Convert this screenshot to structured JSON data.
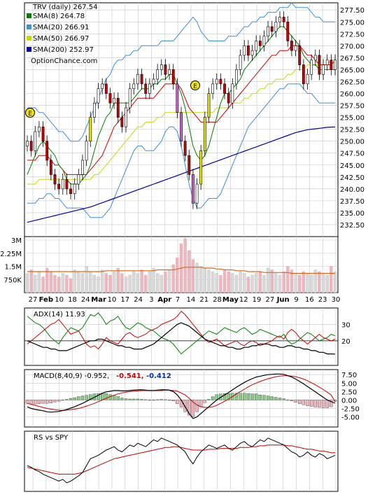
{
  "chart_data": [
    {
      "type": "candlestick",
      "title": "TRV (daily) 267.54",
      "legend": [
        {
          "label": "SMA(8) 264.78",
          "color": "#008000"
        },
        {
          "label": "SMA(20) 266.91",
          "color": "#3d8fd6"
        },
        {
          "label": "SMA(50) 266.97",
          "color": "#c8d800"
        },
        {
          "label": "SMA(200) 252.97",
          "color": "#0000aa"
        }
      ],
      "watermark": "OptionChance.com",
      "ylim": [
        230,
        279
      ],
      "yticks": [
        "277.50",
        "275.00",
        "272.50",
        "270.00",
        "267.50",
        "265.00",
        "262.50",
        "260.00",
        "257.50",
        "255.00",
        "252.50",
        "250.00",
        "247.50",
        "245.00",
        "242.50",
        "240.00",
        "237.50",
        "235.00",
        "232.50"
      ],
      "xticks": [
        "27",
        "Feb",
        "10",
        "18",
        "24",
        "Mar",
        "10",
        "17",
        "24",
        "3",
        "Apr",
        "7",
        "14",
        "21",
        "28",
        "May",
        "12",
        "19",
        "27",
        "Jun",
        "9",
        "16",
        "23",
        "30"
      ],
      "earnings_markers": [
        "E",
        "E"
      ],
      "close": [
        250,
        248,
        252,
        253,
        250,
        246,
        243,
        241,
        240,
        242,
        240,
        239,
        241,
        243,
        246,
        250,
        255,
        258,
        261,
        262,
        260,
        258,
        259,
        255,
        253,
        257,
        261,
        262,
        264,
        262,
        260,
        262,
        263,
        265,
        266,
        264,
        265,
        262,
        256,
        250,
        247,
        243,
        237,
        241,
        248,
        255,
        260,
        262,
        263,
        262,
        260,
        258,
        262,
        265,
        268,
        270,
        268,
        269,
        271,
        270,
        272,
        274,
        273,
        275,
        276,
        275,
        271,
        269,
        270,
        266,
        262,
        264,
        267,
        268,
        264,
        266,
        267,
        265,
        267
      ],
      "sma8": [
        243,
        245,
        247,
        249,
        250,
        249,
        248,
        247,
        245,
        244,
        242,
        241,
        241,
        241,
        242,
        243,
        245,
        248,
        251,
        253,
        255,
        256,
        258,
        258,
        258,
        258,
        258,
        259,
        260,
        261,
        261,
        261,
        262,
        262,
        263,
        263,
        264,
        264,
        262,
        260,
        257,
        253,
        249,
        247,
        246,
        247,
        249,
        252,
        255,
        258,
        260,
        260,
        261,
        262,
        263,
        265,
        266,
        267,
        268,
        269,
        270,
        271,
        272,
        273,
        274,
        274,
        273,
        272,
        271,
        270,
        268,
        267,
        266,
        266,
        265,
        265,
        265,
        265,
        265
      ],
      "sma20": [
        246,
        246,
        246,
        247,
        247,
        247,
        246,
        245,
        245,
        244,
        243,
        243,
        243,
        243,
        243,
        243,
        244,
        245,
        246,
        247,
        249,
        251,
        253,
        254,
        255,
        256,
        257,
        258,
        259,
        259,
        259,
        259,
        259,
        260,
        261,
        262,
        262,
        262,
        262,
        261,
        259,
        257,
        256,
        255,
        254,
        254,
        254,
        254,
        254,
        255,
        256,
        257,
        258,
        259,
        260,
        261,
        262,
        263,
        264,
        265,
        266,
        267,
        268,
        268,
        269,
        269,
        269,
        270,
        270,
        270,
        269,
        268,
        268,
        267,
        266,
        266,
        266,
        266,
        266.91
      ],
      "sma50": [
        241,
        241,
        241,
        242,
        242,
        242,
        242,
        242,
        242,
        242,
        242,
        242,
        242,
        242,
        242,
        242,
        242,
        243,
        243,
        244,
        245,
        246,
        247,
        248,
        249,
        250,
        251,
        252,
        253,
        253,
        254,
        254,
        254,
        255,
        255,
        256,
        256,
        256,
        256,
        256,
        256,
        256,
        256,
        256,
        256,
        256,
        256,
        256,
        257,
        257,
        257,
        257,
        258,
        258,
        258,
        259,
        259,
        260,
        260,
        261,
        261,
        262,
        262,
        263,
        263,
        263,
        264,
        264,
        265,
        265,
        265,
        266,
        266,
        266,
        266,
        266,
        266,
        267,
        266.97
      ],
      "sma200": [
        233,
        233.2,
        233.4,
        233.6,
        233.8,
        234,
        234.2,
        234.4,
        234.6,
        234.8,
        235,
        235.2,
        235.4,
        235.6,
        235.8,
        236,
        236.2,
        236.5,
        236.8,
        237.1,
        237.4,
        237.7,
        238,
        238.3,
        238.6,
        238.9,
        239.2,
        239.5,
        239.8,
        240.1,
        240.4,
        240.7,
        241,
        241.3,
        241.6,
        241.9,
        242.2,
        242.5,
        242.8,
        243.1,
        243.4,
        243.7,
        244,
        244.3,
        244.6,
        244.9,
        245.2,
        245.5,
        245.8,
        246.1,
        246.4,
        246.7,
        247,
        247.3,
        247.6,
        247.9,
        248.2,
        248.5,
        248.8,
        249.1,
        249.4,
        249.7,
        250,
        250.3,
        250.6,
        250.9,
        251.2,
        251.5,
        251.8,
        252,
        252.2,
        252.4,
        252.5,
        252.6,
        252.7,
        252.8,
        252.9,
        252.95,
        252.97
      ],
      "bb_upper": [
        257,
        257,
        257,
        256,
        256,
        255,
        254,
        253,
        252,
        252,
        251,
        250,
        250,
        250,
        251,
        253,
        255,
        257,
        259,
        261,
        263,
        264,
        266,
        267,
        267,
        268,
        268,
        269,
        269,
        270,
        270,
        270,
        270,
        270,
        271,
        271,
        271,
        271,
        272,
        273,
        274,
        275,
        276,
        275,
        273,
        272,
        271,
        271,
        271,
        271,
        271,
        272,
        272,
        272,
        273,
        274,
        274,
        275,
        275,
        276,
        276,
        277,
        277,
        277,
        278,
        278,
        278,
        279,
        278,
        278,
        278,
        278,
        277,
        276,
        276,
        275,
        275,
        275,
        275
      ],
      "bb_lower": [
        237,
        237,
        237,
        238,
        238,
        239,
        239,
        238,
        238,
        237,
        236,
        236,
        236,
        236,
        236,
        235,
        234,
        234,
        234,
        234,
        235,
        236,
        238,
        240,
        242,
        244,
        246,
        248,
        249,
        249,
        248,
        248,
        248,
        249,
        250,
        252,
        253,
        253,
        252,
        249,
        245,
        241,
        238,
        236,
        236,
        237,
        238,
        238,
        238,
        239,
        241,
        243,
        245,
        247,
        249,
        251,
        253,
        254,
        255,
        256,
        257,
        258,
        259,
        260,
        261,
        261,
        262,
        262,
        262,
        262,
        261,
        260,
        260,
        259,
        258,
        258,
        258,
        258,
        258
      ]
    },
    {
      "type": "bar",
      "title": "",
      "yticks": [
        "3M",
        "2.25M",
        "1.5M",
        "750K"
      ],
      "ylim": [
        0,
        3200000
      ],
      "volume": [
        1.1,
        1.3,
        1.0,
        1.2,
        0.9,
        1.4,
        1.2,
        1.0,
        0.9,
        1.1,
        1.0,
        0.8,
        1.3,
        1.2,
        1.1,
        1.5,
        1.2,
        1.0,
        0.9,
        1.3,
        1.1,
        1.0,
        1.2,
        1.4,
        1.1,
        0.9,
        1.0,
        1.2,
        1.1,
        1.3,
        1.0,
        1.2,
        1.4,
        1.1,
        1.0,
        1.2,
        1.3,
        1.6,
        2.0,
        2.8,
        3.1,
        2.4,
        1.9,
        1.7,
        1.5,
        1.4,
        1.3,
        1.2,
        1.1,
        1.0,
        1.3,
        1.2,
        1.1,
        1.0,
        1.2,
        1.1,
        0.9,
        1.0,
        1.1,
        1.2,
        1.0,
        1.4,
        1.3,
        1.1,
        1.0,
        1.2,
        1.5,
        1.3,
        1.1,
        1.0,
        1.2,
        1.1,
        1.0,
        1.3,
        1.2,
        1.1,
        1.0,
        1.5,
        1.2
      ],
      "volume_avg": [
        1.2,
        1.2,
        1.2,
        1.2,
        1.2,
        1.2,
        1.2,
        1.2,
        1.2,
        1.2,
        1.2,
        1.2,
        1.2,
        1.2,
        1.2,
        1.2,
        1.2,
        1.2,
        1.2,
        1.2,
        1.25,
        1.25,
        1.25,
        1.25,
        1.25,
        1.25,
        1.25,
        1.25,
        1.25,
        1.25,
        1.25,
        1.25,
        1.25,
        1.3,
        1.3,
        1.3,
        1.3,
        1.3,
        1.35,
        1.4,
        1.45,
        1.45,
        1.45,
        1.45,
        1.45,
        1.4,
        1.4,
        1.4,
        1.35,
        1.35,
        1.3,
        1.3,
        1.3,
        1.25,
        1.25,
        1.25,
        1.2,
        1.2,
        1.2,
        1.2,
        1.15,
        1.15,
        1.15,
        1.15,
        1.15,
        1.15,
        1.15,
        1.1,
        1.1,
        1.1,
        1.1,
        1.1,
        1.1,
        1.1,
        1.1,
        1.1,
        1.1,
        1.1,
        1.1
      ]
    },
    {
      "type": "line",
      "title": "ADX(14) 11.93",
      "yticks": [
        "30",
        "20"
      ],
      "ylim": [
        5,
        40
      ],
      "reference_line": 20,
      "adx": [
        20,
        19,
        18,
        17,
        16,
        16,
        15,
        15,
        14,
        14,
        14,
        15,
        16,
        17,
        18,
        19,
        20,
        20,
        21,
        21,
        20,
        19,
        18,
        17,
        17,
        16,
        16,
        15,
        15,
        15,
        16,
        17,
        18,
        20,
        22,
        24,
        26,
        28,
        30,
        31,
        30,
        29,
        27,
        25,
        23,
        21,
        20,
        19,
        18,
        17,
        17,
        16,
        16,
        15,
        15,
        16,
        16,
        17,
        17,
        18,
        18,
        18,
        17,
        17,
        16,
        16,
        17,
        17,
        16,
        16,
        15,
        15,
        14,
        14,
        13,
        13,
        12,
        12,
        11.93
      ],
      "plus_di": [
        35,
        33,
        31,
        30,
        28,
        25,
        22,
        20,
        18,
        22,
        25,
        28,
        27,
        26,
        28,
        32,
        36,
        35,
        37,
        34,
        30,
        32,
        33,
        35,
        31,
        28,
        27,
        29,
        31,
        30,
        28,
        27,
        26,
        24,
        22,
        21,
        20,
        18,
        15,
        12,
        14,
        16,
        18,
        20,
        22,
        24,
        26,
        25,
        24,
        26,
        28,
        27,
        26,
        25,
        27,
        28,
        26,
        24,
        25,
        27,
        26,
        25,
        24,
        23,
        22,
        24,
        20,
        18,
        19,
        21,
        23,
        25,
        24,
        22,
        20,
        21,
        22,
        24,
        23
      ],
      "minus_di": [
        18,
        20,
        22,
        24,
        26,
        28,
        30,
        31,
        33,
        30,
        27,
        24,
        25,
        26,
        22,
        18,
        16,
        17,
        15,
        18,
        22,
        20,
        19,
        18,
        21,
        24,
        25,
        23,
        22,
        23,
        24,
        26,
        27,
        28,
        30,
        31,
        32,
        33,
        35,
        38,
        36,
        33,
        30,
        27,
        24,
        21,
        19,
        20,
        21,
        19,
        17,
        18,
        19,
        20,
        18,
        17,
        19,
        20,
        19,
        17,
        18,
        19,
        20,
        22,
        23,
        21,
        25,
        27,
        25,
        22,
        20,
        18,
        20,
        22,
        24,
        22,
        21,
        20,
        21
      ]
    },
    {
      "type": "line",
      "title": "MACD(8,40,9) -0.952,",
      "values_label": [
        "-0.541,",
        "-0.412"
      ],
      "yticks": [
        "7.50",
        "5.00",
        "2.50",
        "0.00",
        "-2.50",
        "-5.00"
      ],
      "ylim": [
        -8,
        9
      ],
      "macd": [
        -2,
        -2.5,
        -2.8,
        -3,
        -3.2,
        -3.5,
        -3.6,
        -3.5,
        -3.4,
        -3.1,
        -2.8,
        -2.4,
        -2,
        -1.5,
        -1,
        -0.4,
        0.2,
        0.8,
        1.4,
        2,
        2.4,
        2.6,
        2.8,
        2.8,
        2.7,
        2.7,
        2.8,
        2.9,
        3,
        3,
        2.9,
        2.8,
        2.8,
        2.9,
        3,
        3,
        2.9,
        2.5,
        1.5,
        0,
        -2,
        -4,
        -5.5,
        -5,
        -4,
        -3,
        -2,
        -1,
        0,
        0.8,
        1.5,
        2.2,
        3,
        3.8,
        4.5,
        5.2,
        5.8,
        6.3,
        6.8,
        7,
        7.3,
        7.5,
        7.6,
        7.7,
        7.7,
        7.6,
        7.2,
        6.8,
        6.2,
        5.5,
        4.8,
        4,
        3.2,
        2.4,
        1.6,
        0.8,
        0,
        -0.5,
        -0.952
      ],
      "signal": [
        -1,
        -1.3,
        -1.6,
        -1.9,
        -2.2,
        -2.5,
        -2.7,
        -2.9,
        -3,
        -3.1,
        -3,
        -2.9,
        -2.7,
        -2.5,
        -2.2,
        -1.8,
        -1.4,
        -1,
        -0.5,
        0,
        0.5,
        1,
        1.4,
        1.8,
        2.1,
        2.3,
        2.5,
        2.6,
        2.7,
        2.8,
        2.8,
        2.8,
        2.8,
        2.8,
        2.8,
        2.9,
        2.9,
        2.8,
        2.6,
        2.1,
        1.5,
        0.5,
        -0.6,
        -1.5,
        -2,
        -2.2,
        -2.2,
        -2,
        -1.6,
        -1,
        -0.4,
        0.3,
        1,
        1.8,
        2.5,
        3.2,
        3.9,
        4.5,
        5,
        5.5,
        5.9,
        6.3,
        6.6,
        6.9,
        7.1,
        7.2,
        7.2,
        7.1,
        6.9,
        6.6,
        6.2,
        5.7,
        5.1,
        4.5,
        3.8,
        3.1,
        2.3,
        1.5,
        -0.541
      ],
      "histogram_label": "-0.412"
    },
    {
      "type": "line",
      "title": "RS vs SPY",
      "rs": [
        40,
        38,
        35,
        33,
        30,
        28,
        26,
        24,
        22,
        24,
        20,
        22,
        25,
        28,
        32,
        40,
        48,
        50,
        52,
        55,
        58,
        60,
        62,
        58,
        56,
        60,
        64,
        62,
        66,
        64,
        62,
        66,
        70,
        68,
        72,
        70,
        68,
        66,
        64,
        60,
        56,
        48,
        42,
        50,
        56,
        60,
        64,
        62,
        60,
        62,
        64,
        60,
        58,
        62,
        66,
        68,
        64,
        62,
        66,
        70,
        68,
        72,
        70,
        68,
        66,
        64,
        60,
        56,
        54,
        50,
        52,
        56,
        52,
        50,
        54,
        52,
        48,
        50,
        52
      ],
      "rs_avg": [
        38,
        37,
        36,
        35,
        34,
        33,
        32,
        31,
        30,
        30,
        30,
        30,
        30,
        31,
        32,
        34,
        36,
        38,
        40,
        42,
        44,
        46,
        48,
        49,
        50,
        51,
        52,
        53,
        54,
        55,
        56,
        57,
        58,
        59,
        60,
        61,
        61,
        62,
        62,
        61,
        60,
        59,
        58,
        58,
        58,
        58,
        59,
        59,
        59,
        60,
        60,
        60,
        60,
        60,
        61,
        61,
        61,
        62,
        62,
        63,
        63,
        64,
        64,
        64,
        64,
        64,
        63,
        63,
        62,
        61,
        60,
        59,
        59,
        58,
        57,
        57,
        56,
        55,
        55
      ]
    }
  ],
  "colors": {
    "up_candle": "#ffffff",
    "down_candle": "#cc0000",
    "gap_up_candle": "#e8e800",
    "gap_down_candle": "#cc66cc",
    "volume_up": "#d9d9d9",
    "volume_down": "#f4b4bc",
    "plus_di": "#008000",
    "minus_di": "#cc0000",
    "macd_histogram_pos": "#88cc88",
    "macd_histogram_neg": "#f4b4bc",
    "rs_line": "#000000",
    "rs_avg": "#cc0000",
    "macd_value_red": "#cc0000",
    "macd_value_blue": "#0033aa"
  }
}
